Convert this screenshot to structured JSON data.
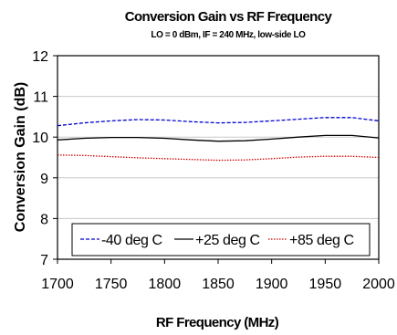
{
  "chart_data": {
    "type": "line",
    "title": "Conversion Gain vs RF Frequency",
    "subtitle": "LO = 0 dBm, IF = 240 MHz, low-side LO",
    "xlabel": "RF Frequency (MHz)",
    "ylabel": "Conversion Gain (dB)",
    "xlim": [
      1700,
      2000
    ],
    "ylim": [
      7,
      12
    ],
    "xticks": [
      1700,
      1750,
      1800,
      1850,
      1900,
      1950,
      2000
    ],
    "yticks": [
      7,
      8,
      9,
      10,
      11,
      12
    ],
    "grid": "horizontal",
    "legend": "bottom",
    "x": [
      1700,
      1725,
      1750,
      1775,
      1800,
      1825,
      1850,
      1875,
      1900,
      1925,
      1950,
      1975,
      2000
    ],
    "series": [
      {
        "name": "-40 deg C",
        "color": "#0000cc",
        "dash": "dashed",
        "values": [
          10.28,
          10.35,
          10.4,
          10.43,
          10.42,
          10.38,
          10.35,
          10.36,
          10.4,
          10.44,
          10.48,
          10.48,
          10.4
        ]
      },
      {
        "name": "+25 deg C",
        "color": "#000000",
        "dash": "solid",
        "values": [
          9.93,
          9.97,
          9.99,
          9.99,
          9.97,
          9.93,
          9.9,
          9.91,
          9.95,
          10.0,
          10.04,
          10.04,
          9.98
        ]
      },
      {
        "name": "+85 deg C",
        "color": "#cc0000",
        "dash": "dotted",
        "values": [
          9.56,
          9.55,
          9.52,
          9.49,
          9.47,
          9.45,
          9.43,
          9.44,
          9.47,
          9.51,
          9.53,
          9.53,
          9.5
        ]
      }
    ]
  }
}
